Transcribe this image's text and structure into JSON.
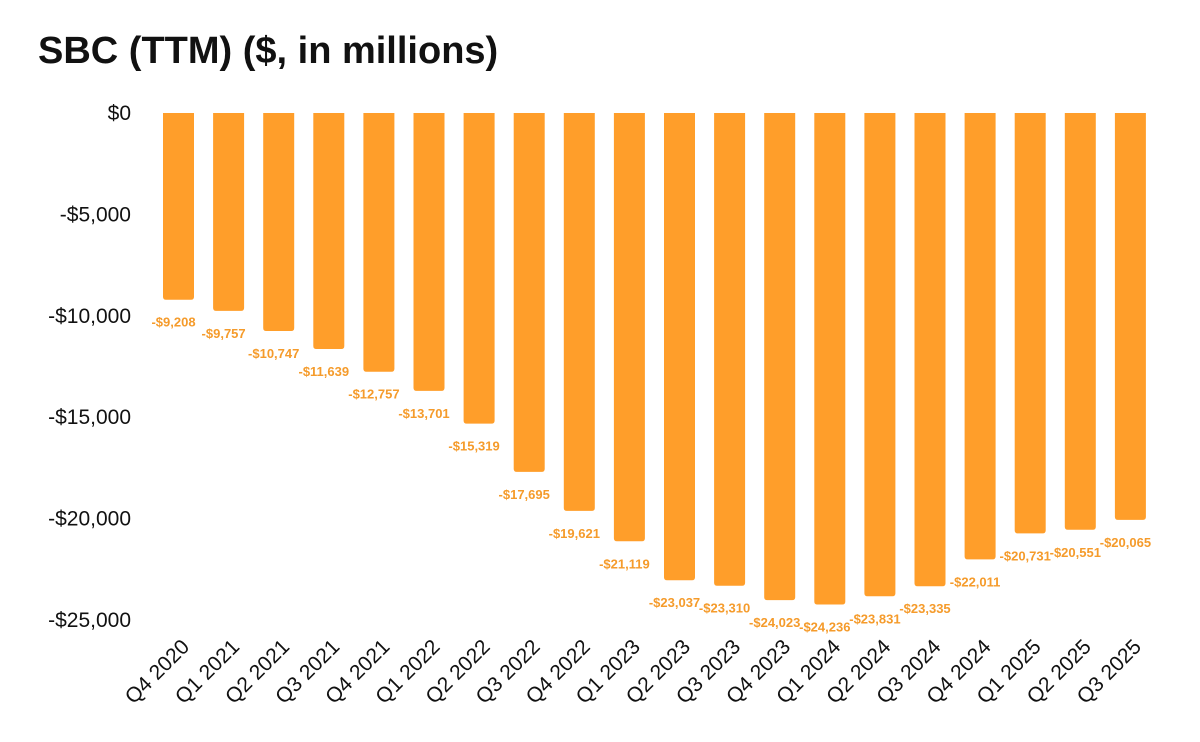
{
  "chart_data": {
    "type": "bar",
    "title": "SBC (TTM) ($, in millions)",
    "xlabel": "",
    "ylabel": "",
    "ylim": [
      -25000,
      0
    ],
    "yticks": [
      0,
      -5000,
      -10000,
      -15000,
      -20000,
      -25000
    ],
    "ytick_labels": [
      "$0",
      "-$5,000",
      "-$10,000",
      "-$15,000",
      "-$20,000",
      "-$25,000"
    ],
    "grid": false,
    "bar_color": "#FF9E2A",
    "label_color": "#F59B2B",
    "categories": [
      "Q4 2020",
      "Q1 2021",
      "Q2 2021",
      "Q3 2021",
      "Q4 2021",
      "Q1 2022",
      "Q2 2022",
      "Q3 2022",
      "Q4 2022",
      "Q1 2023",
      "Q2 2023",
      "Q3 2023",
      "Q4 2023",
      "Q1 2024",
      "Q2 2024",
      "Q3 2024",
      "Q4 2024",
      "Q1 2025",
      "Q2 2025",
      "Q3 2025"
    ],
    "values": [
      -9208,
      -9757,
      -10747,
      -11639,
      -12757,
      -13701,
      -15319,
      -17695,
      -19621,
      -21119,
      -23037,
      -23310,
      -24023,
      -24236,
      -23831,
      -23335,
      -22011,
      -20731,
      -20551,
      -20065
    ],
    "data_labels": [
      "-$9,208",
      "-$9,757",
      "-$10,747",
      "-$11,639",
      "-$12,757",
      "-$13,701",
      "-$15,319",
      "-$17,695",
      "-$19,621",
      "-$21,119",
      "-$23,037",
      "-$23,310",
      "-$24,023",
      "-$24,236",
      "-$23,831",
      "-$23,335",
      "-$22,011",
      "-$20,731",
      "-$20,551",
      "-$20,065"
    ]
  }
}
